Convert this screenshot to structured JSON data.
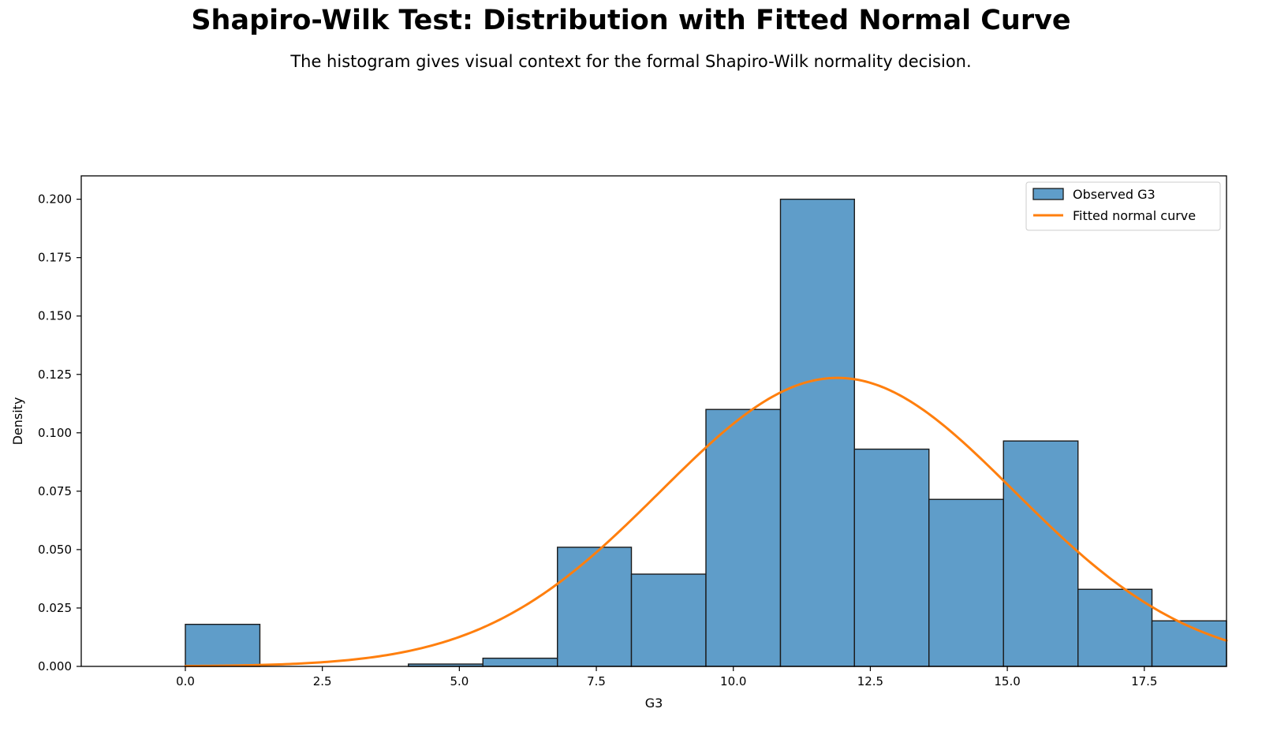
{
  "chart_data": {
    "type": "bar",
    "title": "Shapiro-Wilk Test: Distribution with Fitted Normal Curve",
    "subtitle": "The histogram gives visual context for the formal Shapiro-Wilk normality decision.",
    "xlabel": "G3",
    "ylabel": "Density",
    "xlim": [
      -1.9,
      19.0
    ],
    "ylim": [
      0,
      0.21
    ],
    "grid": false,
    "legend_position": "top-right",
    "x_ticks": [
      0.0,
      2.5,
      5.0,
      7.5,
      10.0,
      12.5,
      15.0,
      17.5
    ],
    "x_tick_labels": [
      "0.0",
      "2.5",
      "5.0",
      "7.5",
      "10.0",
      "12.5",
      "15.0",
      "17.5"
    ],
    "y_ticks": [
      0,
      0.025,
      0.05,
      0.075,
      0.1,
      0.125,
      0.15,
      0.175,
      0.2
    ],
    "y_tick_labels": [
      "0.000",
      "0.025",
      "0.050",
      "0.075",
      "0.100",
      "0.125",
      "0.150",
      "0.175",
      "0.200"
    ],
    "bins": [
      {
        "x0": 0.0,
        "x1": 1.36,
        "value": 0.018
      },
      {
        "x0": 1.36,
        "x1": 2.71,
        "value": 0.0
      },
      {
        "x0": 2.71,
        "x1": 4.07,
        "value": 0.0
      },
      {
        "x0": 4.07,
        "x1": 5.43,
        "value": 0.001
      },
      {
        "x0": 5.43,
        "x1": 6.79,
        "value": 0.0035
      },
      {
        "x0": 6.79,
        "x1": 8.14,
        "value": 0.051
      },
      {
        "x0": 8.14,
        "x1": 9.5,
        "value": 0.0395
      },
      {
        "x0": 9.5,
        "x1": 10.86,
        "value": 0.11
      },
      {
        "x0": 10.86,
        "x1": 12.21,
        "value": 0.2
      },
      {
        "x0": 12.21,
        "x1": 13.57,
        "value": 0.093
      },
      {
        "x0": 13.57,
        "x1": 14.93,
        "value": 0.0715
      },
      {
        "x0": 14.93,
        "x1": 16.29,
        "value": 0.0965
      },
      {
        "x0": 16.29,
        "x1": 17.64,
        "value": 0.033
      },
      {
        "x0": 17.64,
        "x1": 19.0,
        "value": 0.0195
      }
    ],
    "series": [
      {
        "name": "Observed G3",
        "kind": "histogram",
        "color": "#5f9dc9",
        "edge_color": "#1a1a1a"
      },
      {
        "name": "Fitted normal curve",
        "kind": "line",
        "color": "#ff7f0e",
        "mean": 11.9,
        "std": 3.23,
        "x_range": [
          0.0,
          19.0
        ]
      }
    ]
  }
}
